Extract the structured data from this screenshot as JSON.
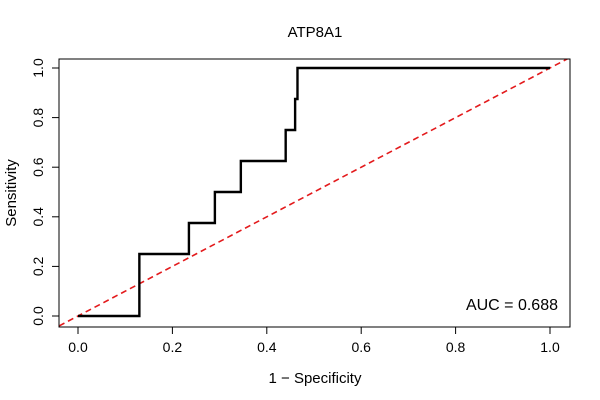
{
  "chart_data": {
    "type": "line",
    "title": "ATP8A1",
    "xlabel": "1 − Specificity",
    "ylabel": "Sensitivity",
    "xlim": [
      0,
      1
    ],
    "ylim": [
      0,
      1
    ],
    "grid": false,
    "x_ticks": [
      0.0,
      0.2,
      0.4,
      0.6,
      0.8,
      1.0
    ],
    "x_tick_labels": [
      "0.0",
      "0.2",
      "0.4",
      "0.6",
      "0.8",
      "1.0"
    ],
    "y_ticks": [
      0.0,
      0.2,
      0.4,
      0.6,
      0.8,
      1.0
    ],
    "y_tick_labels": [
      "0.0",
      "0.2",
      "0.4",
      "0.6",
      "0.8",
      "1.0"
    ],
    "series": [
      {
        "name": "ROC curve",
        "color": "#000000",
        "style": "solid",
        "x": [
          0.0,
          0.13,
          0.13,
          0.235,
          0.235,
          0.29,
          0.29,
          0.345,
          0.345,
          0.44,
          0.44,
          0.46,
          0.46,
          0.465,
          0.465,
          1.0
        ],
        "y": [
          0.0,
          0.0,
          0.25,
          0.25,
          0.375,
          0.375,
          0.5,
          0.5,
          0.625,
          0.625,
          0.75,
          0.75,
          0.875,
          0.875,
          1.0,
          1.0
        ]
      },
      {
        "name": "Reference",
        "color": "#e31a1c",
        "style": "dashed",
        "x": [
          -0.04,
          1.04
        ],
        "y": [
          -0.04,
          1.04
        ]
      }
    ],
    "annotations": [
      {
        "text": "AUC = 0.688",
        "position": "bottom-right"
      }
    ]
  }
}
